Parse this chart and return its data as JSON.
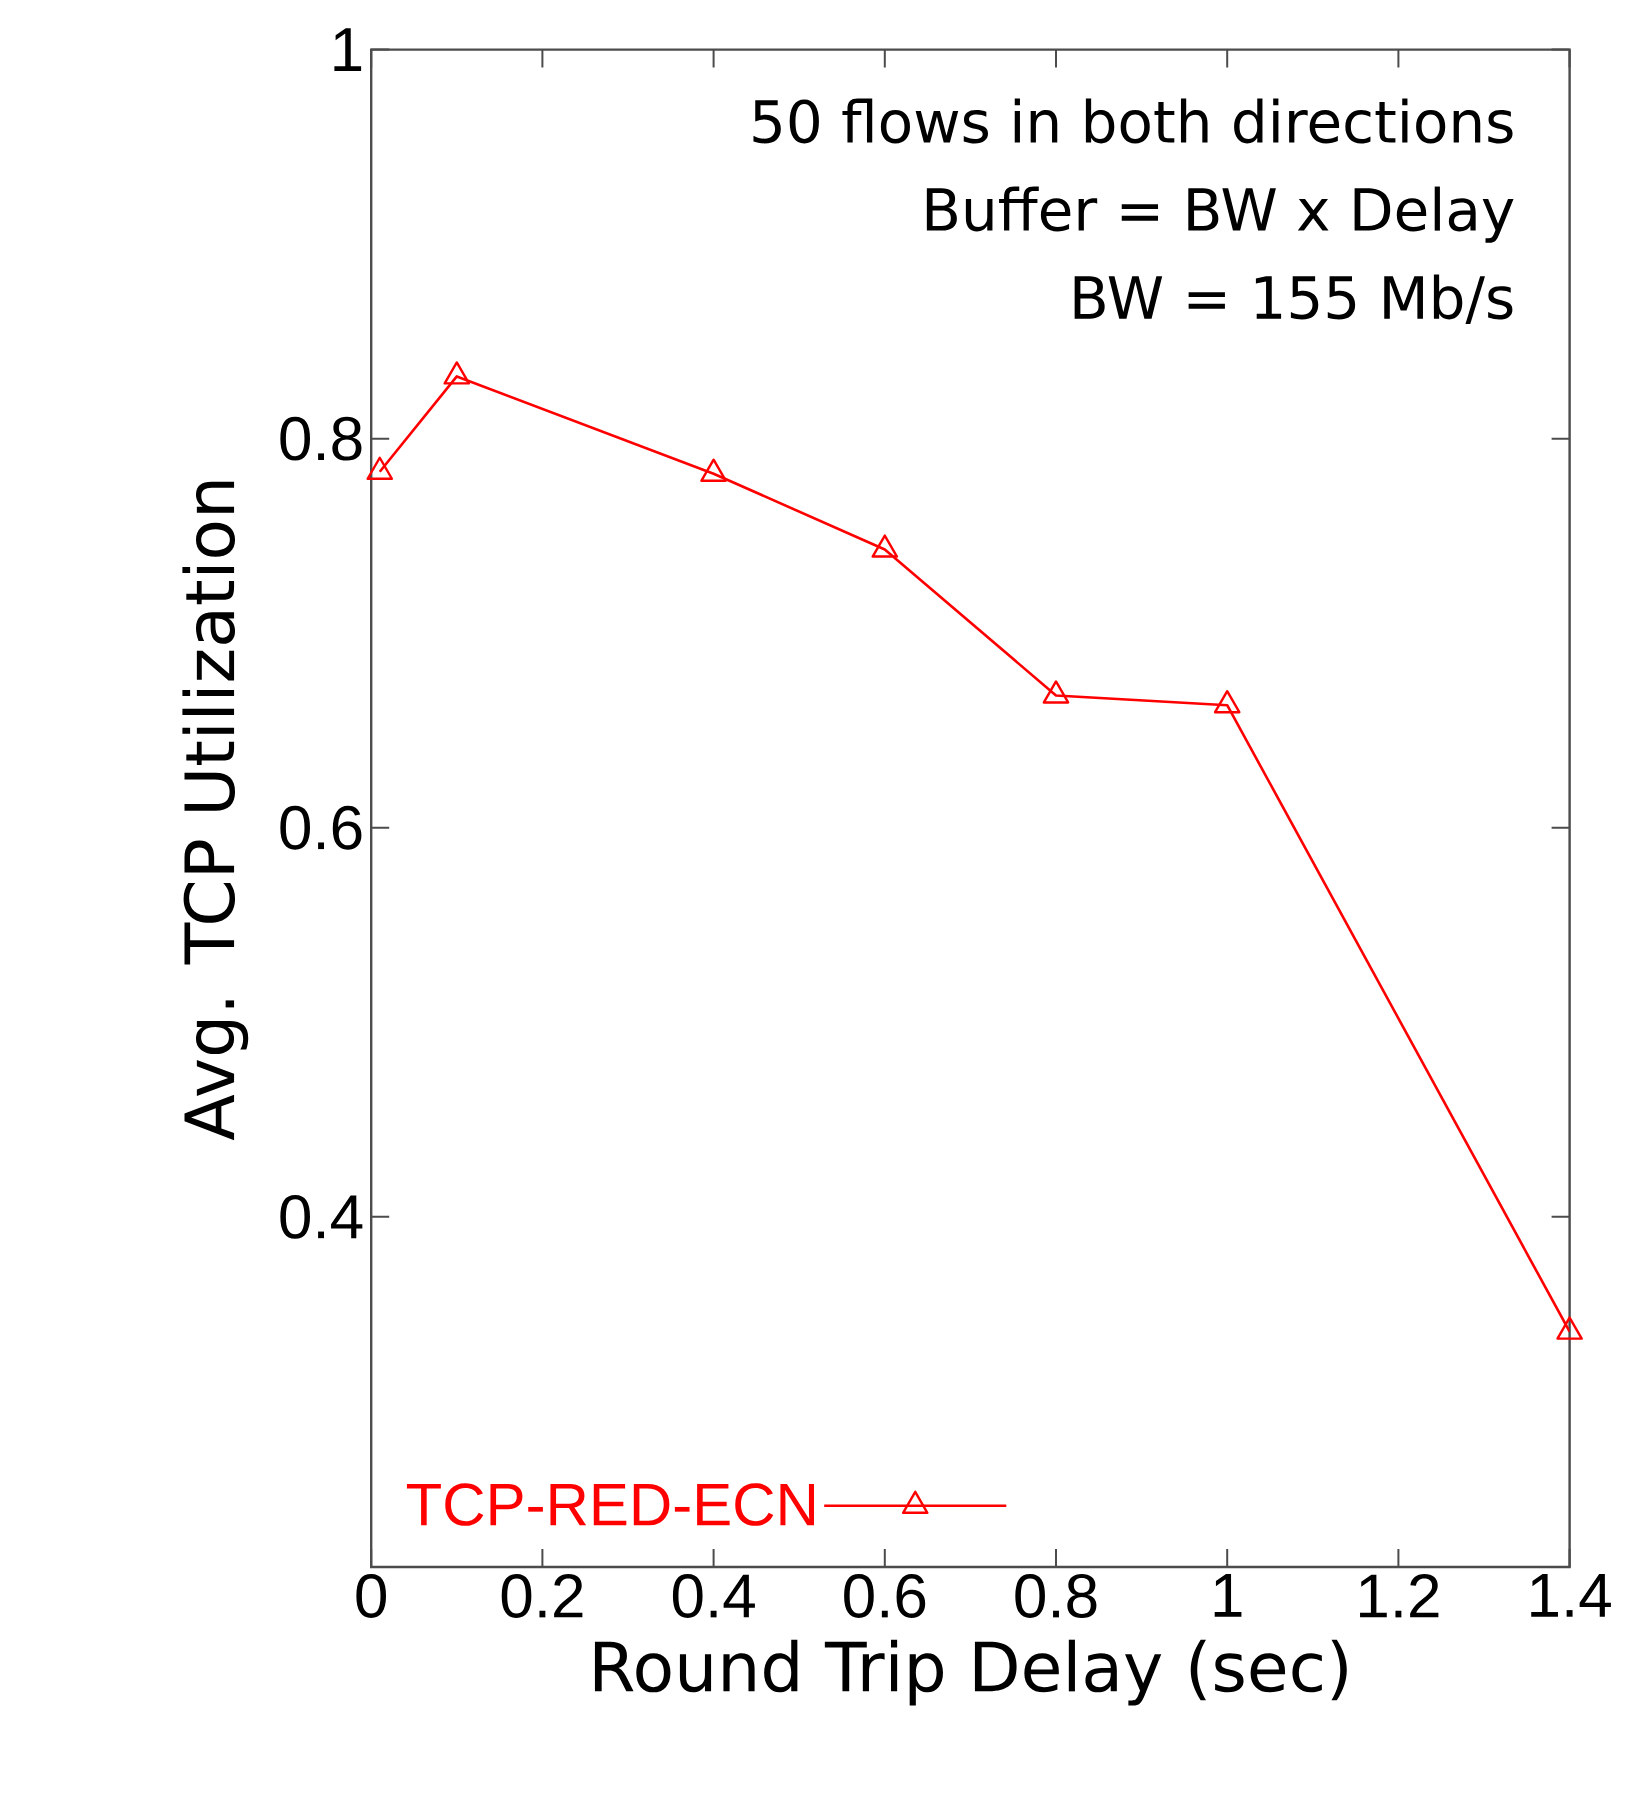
{
  "chart_data": {
    "type": "line",
    "xlabel": "Round Trip Delay (sec)",
    "ylabel": "Avg. TCP Utilization",
    "annotations": [
      "50 flows in both directions",
      "Buffer = BW x Delay",
      "BW = 155 Mb/s"
    ],
    "x": [
      0.01,
      0.1,
      0.4,
      0.6,
      0.8,
      1.0,
      1.4
    ],
    "series": [
      {
        "name": "TCP-RED-ECN",
        "color": "#ff0000",
        "values": [
          0.783,
          0.832,
          0.782,
          0.743,
          0.668,
          0.663,
          0.341
        ]
      }
    ],
    "xlim": [
      0,
      1.4
    ],
    "ylim": [
      0.22,
      1
    ],
    "xticks": [
      0,
      0.2,
      0.4,
      0.6,
      0.8,
      1,
      1.2,
      1.4
    ],
    "yticks": [
      0.4,
      0.6,
      0.8,
      1
    ],
    "grid": false,
    "legend": "bottom left",
    "marker": "triangle",
    "line_style": "solid"
  }
}
